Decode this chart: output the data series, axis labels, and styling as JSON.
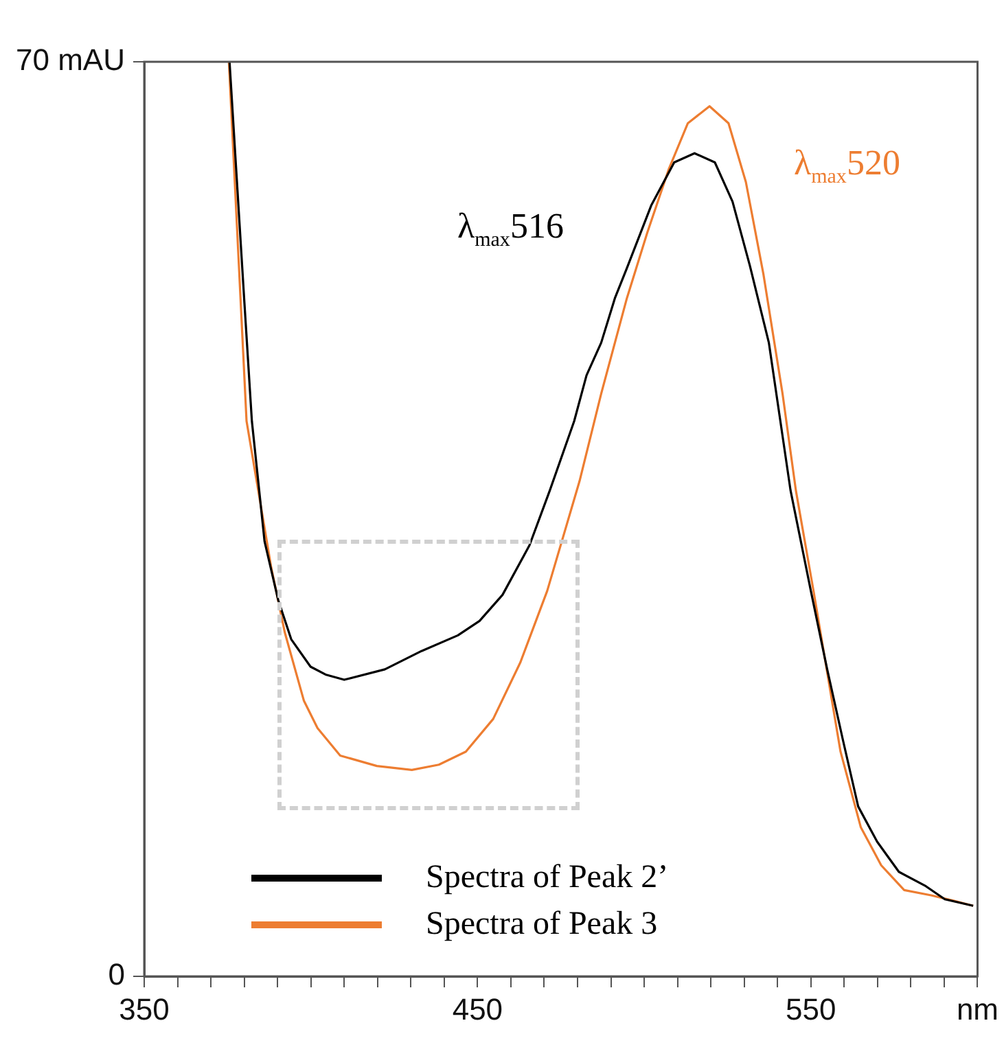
{
  "chart_data": {
    "type": "line",
    "marker": "none",
    "legend": "bottom left",
    "xlim": [
      350,
      600
    ],
    "ylim": [
      0,
      70
    ],
    "xticks": [
      350,
      {
        "value": 360,
        "label": null
      },
      {
        "value": 370,
        "label": null
      },
      {
        "value": 380,
        "label": null
      },
      {
        "value": 390,
        "label": null
      },
      {
        "value": 400,
        "label": null
      },
      {
        "value": 410,
        "label": null
      },
      {
        "value": 420,
        "label": null
      },
      {
        "value": 430,
        "label": null
      },
      {
        "value": 440,
        "label": null
      },
      450,
      {
        "value": 460,
        "label": null
      },
      {
        "value": 470,
        "label": null
      },
      {
        "value": 480,
        "label": null
      },
      {
        "value": 490,
        "label": null
      },
      {
        "value": 500,
        "label": null
      },
      {
        "value": 510,
        "label": null
      },
      {
        "value": 520,
        "label": null
      },
      {
        "value": 530,
        "label": null
      },
      {
        "value": 540,
        "label": null
      },
      550,
      {
        "value": 560,
        "label": null
      },
      {
        "value": 570,
        "label": null
      },
      {
        "value": 580,
        "label": null
      },
      {
        "value": 590,
        "label": null
      },
      {
        "value": 600,
        "label": "nm"
      }
    ],
    "yticks": [
      0,
      {
        "value": 70,
        "label": "70 mAU"
      }
    ],
    "annotations": [
      "λ$_{max}$516",
      "λ$_{max}$520"
    ],
    "series": [
      {
        "name": "Spectra of Peak 2’",
        "color": "#000000",
        "x": [
          375.6,
          380.0,
          382.3,
          386.1,
          390.2,
          394.1,
          399.9,
          404.4,
          410.0,
          422.2,
          433.2,
          444.1,
          450.6,
          457.5,
          465.6,
          471.7,
          479.0,
          482.7,
          487.1,
          491.2,
          494.8,
          502.1,
          509.0,
          515.1,
          521.2,
          526.5,
          531.7,
          537.4,
          543.9,
          550.0,
          554.9,
          559.7,
          564.2,
          569.9,
          576.4,
          584.5,
          590.2,
          598.7
        ],
        "values": [
          70,
          51.8,
          42.5,
          33.3,
          28.8,
          25.8,
          23.7,
          23.1,
          22.7,
          23.5,
          24.9,
          26.1,
          27.2,
          29.2,
          33.0,
          37.2,
          42.5,
          46.0,
          48.5,
          51.9,
          54.2,
          59.0,
          62.3,
          63.0,
          62.3,
          59.3,
          54.4,
          48.5,
          37.2,
          29.5,
          23.5,
          18.0,
          13.0,
          10.3,
          8.0,
          6.9,
          5.9,
          5.4
        ]
      },
      {
        "name": "Spectra of Peak 3",
        "color": "#ed7d31",
        "x": [
          375.4,
          380.7,
          388.1,
          392.2,
          397.9,
          402.0,
          408.8,
          419.8,
          430.3,
          438.4,
          446.5,
          454.7,
          462.8,
          470.9,
          480.6,
          487.1,
          494.8,
          500.9,
          507.4,
          513.1,
          519.6,
          525.3,
          530.5,
          535.8,
          541.5,
          545.5,
          550.8,
          558.9,
          565.0,
          571.1,
          578.0,
          586.1,
          592.6,
          598.7
        ],
        "values": [
          70,
          42.5,
          31.3,
          26.3,
          21.1,
          19.0,
          16.9,
          16.1,
          15.8,
          16.2,
          17.2,
          19.7,
          24.0,
          29.5,
          37.9,
          44.6,
          51.9,
          56.9,
          61.8,
          65.3,
          66.6,
          65.3,
          60.8,
          53.7,
          44.6,
          37.2,
          29.5,
          17.2,
          11.4,
          8.5,
          6.6,
          6.2,
          5.8,
          5.4
        ]
      }
    ]
  }
}
